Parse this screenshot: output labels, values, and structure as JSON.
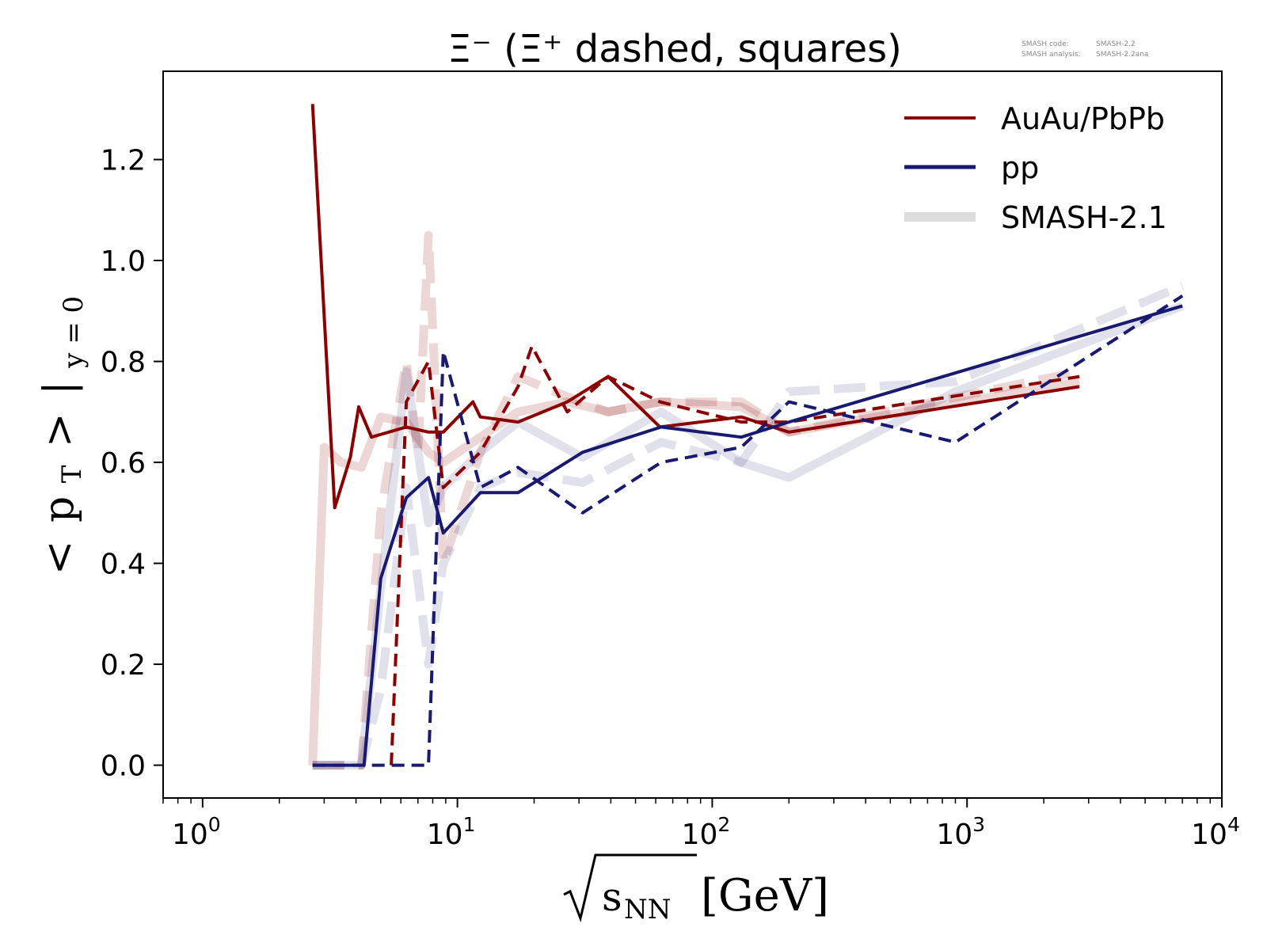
{
  "chart_data": {
    "type": "line",
    "title": "Ξ⁻ (Ξ⁺ dashed, squares)",
    "watermark": {
      "code_label": "SMASH code:",
      "code_value": "SMASH-2.2",
      "analysis_label": "SMASH analysis:",
      "analysis_value": "SMASH-2.2ana"
    },
    "xscale": "log",
    "xlim": [
      0.7,
      10000
    ],
    "ylim": [
      -0.065,
      1.375
    ],
    "grid": false,
    "legend_position": "top-right",
    "xlabel": {
      "sqrt": "√",
      "base": "s",
      "sub": "NN",
      "unit": "[GeV]"
    },
    "ylabel": {
      "open": "<",
      "p": "p",
      "p_sub": "T",
      "close": ">",
      "bar": "|",
      "cond_sub": "y = 0"
    },
    "x_ticks": [
      {
        "value": 1,
        "base": "10",
        "exp": "0"
      },
      {
        "value": 10,
        "base": "10",
        "exp": "1"
      },
      {
        "value": 100,
        "base": "10",
        "exp": "2"
      },
      {
        "value": 1000,
        "base": "10",
        "exp": "3"
      },
      {
        "value": 10000,
        "base": "10",
        "exp": "4"
      }
    ],
    "y_ticks": [
      {
        "value": 0.0,
        "label": "0.0"
      },
      {
        "value": 0.2,
        "label": "0.2"
      },
      {
        "value": 0.4,
        "label": "0.4"
      },
      {
        "value": 0.6,
        "label": "0.6"
      },
      {
        "value": 0.8,
        "label": "0.8"
      },
      {
        "value": 1.0,
        "label": "1.0"
      },
      {
        "value": 1.2,
        "label": "1.2"
      }
    ],
    "legend": [
      {
        "label": "AuAu/PbPb",
        "color": "#8b0000",
        "style": "solid"
      },
      {
        "label": "pp",
        "color": "#191970",
        "style": "solid"
      },
      {
        "label": "SMASH-2.1",
        "color": "#dcdcdc",
        "style": "thick"
      }
    ],
    "series": [
      {
        "group": "SMASH-2.1",
        "system": "AuAu/PbPb",
        "particle": "Xi-",
        "color": "#8b0000",
        "dashed": false,
        "faded": true,
        "x": [
          2.7,
          3.0,
          3.5,
          4.2,
          5.0,
          6.3,
          7.7,
          8.8,
          12.3,
          17.3,
          27,
          39,
          62.4,
          130,
          200,
          2760
        ],
        "y": [
          0.0,
          0.63,
          0.6,
          0.59,
          0.69,
          0.68,
          0.62,
          0.6,
          0.65,
          0.7,
          0.72,
          0.7,
          0.72,
          0.71,
          0.66,
          0.76
        ]
      },
      {
        "group": "SMASH-2.1",
        "system": "AuAu/PbPb",
        "particle": "Xi+",
        "color": "#8b0000",
        "dashed": true,
        "faded": true,
        "x": [
          2.7,
          4.2,
          5.0,
          6.3,
          7.0,
          7.7,
          8.8,
          12.3,
          17.3,
          27,
          39,
          62.4,
          130,
          200,
          2760
        ],
        "y": [
          0.0,
          0.0,
          0.5,
          0.8,
          0.62,
          1.05,
          0.4,
          0.62,
          0.77,
          0.73,
          0.7,
          0.72,
          0.72,
          0.66,
          0.78
        ]
      },
      {
        "group": "SMASH-2.1",
        "system": "pp",
        "particle": "Xi-",
        "color": "#191970",
        "dashed": false,
        "faded": true,
        "x": [
          2.7,
          4.2,
          5.0,
          6.3,
          7.7,
          8.8,
          12.3,
          17.3,
          31,
          63,
          130,
          200,
          900,
          7000
        ],
        "y": [
          0.0,
          0.0,
          0.35,
          0.78,
          0.48,
          0.55,
          0.62,
          0.68,
          0.61,
          0.7,
          0.6,
          0.57,
          0.74,
          0.91
        ]
      },
      {
        "group": "SMASH-2.1",
        "system": "pp",
        "particle": "Xi+",
        "color": "#191970",
        "dashed": true,
        "faded": true,
        "x": [
          2.7,
          4.2,
          5.0,
          6.3,
          7.7,
          8.8,
          12.3,
          17.3,
          31,
          63,
          130,
          200,
          900,
          7000
        ],
        "y": [
          0.0,
          0.0,
          0.15,
          0.55,
          0.2,
          0.4,
          0.55,
          0.58,
          0.56,
          0.64,
          0.6,
          0.74,
          0.76,
          0.95
        ]
      },
      {
        "group": "data",
        "system": "AuAu/PbPb",
        "particle": "Xi-",
        "color": "#8b0000",
        "dashed": false,
        "faded": false,
        "x": [
          2.7,
          3.3,
          3.8,
          4.1,
          4.6,
          6.3,
          7.7,
          8.8,
          11.5,
          12.3,
          17.3,
          27,
          39,
          62.4,
          130,
          200,
          2760
        ],
        "y": [
          1.31,
          0.51,
          0.61,
          0.71,
          0.65,
          0.67,
          0.66,
          0.66,
          0.72,
          0.69,
          0.68,
          0.72,
          0.77,
          0.67,
          0.69,
          0.66,
          0.75
        ]
      },
      {
        "group": "data",
        "system": "AuAu/PbPb",
        "particle": "Xi+",
        "color": "#8b0000",
        "dashed": true,
        "faded": false,
        "x": [
          5.5,
          6.3,
          7.7,
          8.8,
          12.3,
          17.3,
          19.6,
          27,
          39,
          62.4,
          130,
          200,
          2760
        ],
        "y": [
          0.0,
          0.72,
          0.8,
          0.55,
          0.62,
          0.75,
          0.83,
          0.7,
          0.77,
          0.72,
          0.68,
          0.68,
          0.77
        ]
      },
      {
        "group": "data",
        "system": "pp",
        "particle": "Xi-",
        "color": "#191970",
        "dashed": false,
        "faded": false,
        "x": [
          2.7,
          4.3,
          5.0,
          6.3,
          7.7,
          8.8,
          12.3,
          17.3,
          31,
          63,
          130,
          200,
          7000
        ],
        "y": [
          0.0,
          0.0,
          0.37,
          0.53,
          0.57,
          0.46,
          0.54,
          0.54,
          0.62,
          0.67,
          0.65,
          0.68,
          0.91
        ]
      },
      {
        "group": "data",
        "system": "pp",
        "particle": "Xi+",
        "color": "#191970",
        "dashed": true,
        "faded": false,
        "x": [
          2.7,
          7.7,
          8.8,
          12.3,
          17.3,
          31,
          63,
          130,
          200,
          900,
          7000
        ],
        "y": [
          0.0,
          0.0,
          0.82,
          0.55,
          0.59,
          0.5,
          0.6,
          0.63,
          0.72,
          0.64,
          0.93
        ]
      }
    ]
  }
}
